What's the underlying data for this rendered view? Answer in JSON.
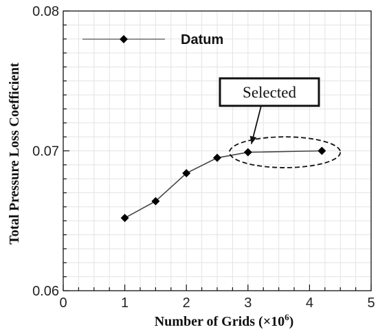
{
  "chart_data": {
    "type": "line",
    "xlabel": "Number of Grids (×10",
    "xlabel_exp": "6",
    "xlabel_close": ")",
    "ylabel": "Total Pressure Loss Coefficient",
    "xlim": [
      0,
      5
    ],
    "ylim": [
      0.06,
      0.08
    ],
    "x_ticks": [
      "0",
      "1",
      "2",
      "3",
      "4",
      "5"
    ],
    "y_ticks": [
      "0.06",
      "0.07",
      "0.08"
    ],
    "grid": true,
    "legend_position": "top-left",
    "series": [
      {
        "name": "Datum",
        "marker": "diamond",
        "color": "#000000",
        "x": [
          1.0,
          1.5,
          2.0,
          2.5,
          3.0,
          4.2
        ],
        "y": [
          0.0652,
          0.0664,
          0.0684,
          0.0695,
          0.0699,
          0.07
        ]
      }
    ],
    "annotation": {
      "text": "Selected",
      "target_x": 3.0,
      "target_y": 0.0699,
      "ellipse_x_range": [
        2.7,
        4.5
      ],
      "ellipse_y_range": [
        0.0688,
        0.071
      ]
    }
  }
}
